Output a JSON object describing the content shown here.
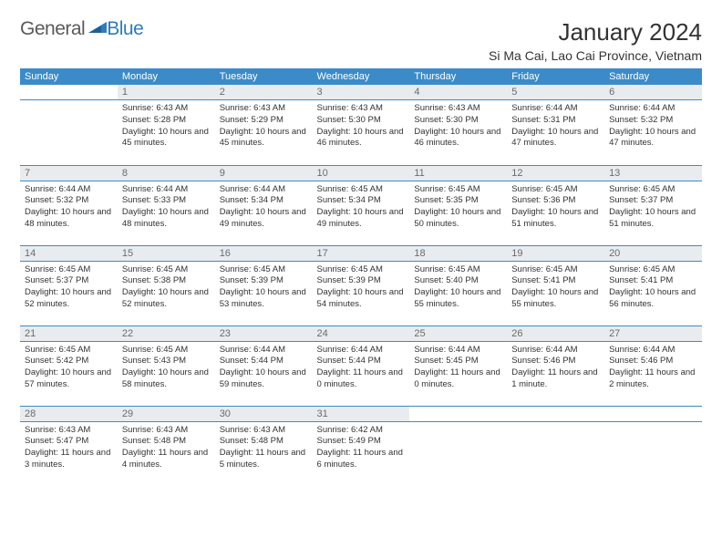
{
  "logo": {
    "text1": "General",
    "text2": "Blue"
  },
  "title": "January 2024",
  "location": "Si Ma Cai, Lao Cai Province, Vietnam",
  "colors": {
    "header_bg": "#3b8bc9",
    "header_text": "#ffffff",
    "dayhead_bg": "#e9ecee",
    "dayhead_text": "#6a6a6a",
    "rule": "#3b8bc9",
    "body_text": "#333333",
    "logo_gray": "#5a5a5a",
    "logo_blue": "#2f7bbf"
  },
  "weekdays": [
    "Sunday",
    "Monday",
    "Tuesday",
    "Wednesday",
    "Thursday",
    "Friday",
    "Saturday"
  ],
  "weeks": [
    [
      null,
      {
        "n": "1",
        "sunrise": "6:43 AM",
        "sunset": "5:28 PM",
        "daylight": "10 hours and 45 minutes."
      },
      {
        "n": "2",
        "sunrise": "6:43 AM",
        "sunset": "5:29 PM",
        "daylight": "10 hours and 45 minutes."
      },
      {
        "n": "3",
        "sunrise": "6:43 AM",
        "sunset": "5:30 PM",
        "daylight": "10 hours and 46 minutes."
      },
      {
        "n": "4",
        "sunrise": "6:43 AM",
        "sunset": "5:30 PM",
        "daylight": "10 hours and 46 minutes."
      },
      {
        "n": "5",
        "sunrise": "6:44 AM",
        "sunset": "5:31 PM",
        "daylight": "10 hours and 47 minutes."
      },
      {
        "n": "6",
        "sunrise": "6:44 AM",
        "sunset": "5:32 PM",
        "daylight": "10 hours and 47 minutes."
      }
    ],
    [
      {
        "n": "7",
        "sunrise": "6:44 AM",
        "sunset": "5:32 PM",
        "daylight": "10 hours and 48 minutes."
      },
      {
        "n": "8",
        "sunrise": "6:44 AM",
        "sunset": "5:33 PM",
        "daylight": "10 hours and 48 minutes."
      },
      {
        "n": "9",
        "sunrise": "6:44 AM",
        "sunset": "5:34 PM",
        "daylight": "10 hours and 49 minutes."
      },
      {
        "n": "10",
        "sunrise": "6:45 AM",
        "sunset": "5:34 PM",
        "daylight": "10 hours and 49 minutes."
      },
      {
        "n": "11",
        "sunrise": "6:45 AM",
        "sunset": "5:35 PM",
        "daylight": "10 hours and 50 minutes."
      },
      {
        "n": "12",
        "sunrise": "6:45 AM",
        "sunset": "5:36 PM",
        "daylight": "10 hours and 51 minutes."
      },
      {
        "n": "13",
        "sunrise": "6:45 AM",
        "sunset": "5:37 PM",
        "daylight": "10 hours and 51 minutes."
      }
    ],
    [
      {
        "n": "14",
        "sunrise": "6:45 AM",
        "sunset": "5:37 PM",
        "daylight": "10 hours and 52 minutes."
      },
      {
        "n": "15",
        "sunrise": "6:45 AM",
        "sunset": "5:38 PM",
        "daylight": "10 hours and 52 minutes."
      },
      {
        "n": "16",
        "sunrise": "6:45 AM",
        "sunset": "5:39 PM",
        "daylight": "10 hours and 53 minutes."
      },
      {
        "n": "17",
        "sunrise": "6:45 AM",
        "sunset": "5:39 PM",
        "daylight": "10 hours and 54 minutes."
      },
      {
        "n": "18",
        "sunrise": "6:45 AM",
        "sunset": "5:40 PM",
        "daylight": "10 hours and 55 minutes."
      },
      {
        "n": "19",
        "sunrise": "6:45 AM",
        "sunset": "5:41 PM",
        "daylight": "10 hours and 55 minutes."
      },
      {
        "n": "20",
        "sunrise": "6:45 AM",
        "sunset": "5:41 PM",
        "daylight": "10 hours and 56 minutes."
      }
    ],
    [
      {
        "n": "21",
        "sunrise": "6:45 AM",
        "sunset": "5:42 PM",
        "daylight": "10 hours and 57 minutes."
      },
      {
        "n": "22",
        "sunrise": "6:45 AM",
        "sunset": "5:43 PM",
        "daylight": "10 hours and 58 minutes."
      },
      {
        "n": "23",
        "sunrise": "6:44 AM",
        "sunset": "5:44 PM",
        "daylight": "10 hours and 59 minutes."
      },
      {
        "n": "24",
        "sunrise": "6:44 AM",
        "sunset": "5:44 PM",
        "daylight": "11 hours and 0 minutes."
      },
      {
        "n": "25",
        "sunrise": "6:44 AM",
        "sunset": "5:45 PM",
        "daylight": "11 hours and 0 minutes."
      },
      {
        "n": "26",
        "sunrise": "6:44 AM",
        "sunset": "5:46 PM",
        "daylight": "11 hours and 1 minute."
      },
      {
        "n": "27",
        "sunrise": "6:44 AM",
        "sunset": "5:46 PM",
        "daylight": "11 hours and 2 minutes."
      }
    ],
    [
      {
        "n": "28",
        "sunrise": "6:43 AM",
        "sunset": "5:47 PM",
        "daylight": "11 hours and 3 minutes."
      },
      {
        "n": "29",
        "sunrise": "6:43 AM",
        "sunset": "5:48 PM",
        "daylight": "11 hours and 4 minutes."
      },
      {
        "n": "30",
        "sunrise": "6:43 AM",
        "sunset": "5:48 PM",
        "daylight": "11 hours and 5 minutes."
      },
      {
        "n": "31",
        "sunrise": "6:42 AM",
        "sunset": "5:49 PM",
        "daylight": "11 hours and 6 minutes."
      },
      null,
      null,
      null
    ]
  ],
  "labels": {
    "sunrise": "Sunrise:",
    "sunset": "Sunset:",
    "daylight": "Daylight:"
  }
}
